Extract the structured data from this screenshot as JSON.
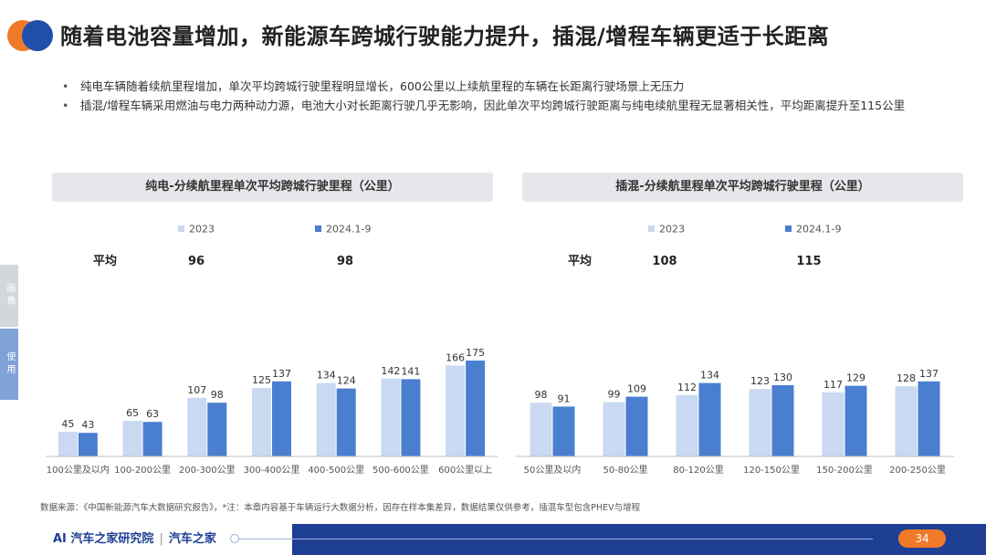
{
  "header": {
    "title": "随着电池容量增加，新能源车跨城行驶能力提升，插混/增程车辆更适于长距离"
  },
  "bullets": [
    "纯电车辆随着续航里程增加，单次平均跨城行驶里程明显增长，600公里以上续航里程的车辆在长距离行驶场景上无压力",
    "插混/增程车辆采用燃油与电力两种动力源，电池大小对长距离行驶几乎无影响，因此单次平均跨城行驶距离与纯电续航里程无显著相关性，平均距离提升至115公里"
  ],
  "side_tabs": [
    "画像",
    "使用"
  ],
  "colors": {
    "series_2023": "#c9d9f2",
    "series_2024": "#4a7fd0",
    "axis": "#bfbfbf"
  },
  "chart_data": [
    {
      "type": "bar",
      "title": "纯电-分续航里程单次平均跨城行驶里程（公里）",
      "average_label": "平均",
      "averages": [
        "96",
        "98"
      ],
      "categories": [
        "100公里及以内",
        "100-200公里",
        "200-300公里",
        "300-400公里",
        "400-500公里",
        "500-600公里",
        "600公里以上"
      ],
      "series": [
        {
          "name": "2023",
          "values": [
            45,
            65,
            107,
            125,
            134,
            142,
            166
          ]
        },
        {
          "name": "2024.1-9",
          "values": [
            43,
            63,
            98,
            137,
            124,
            141,
            175
          ]
        }
      ],
      "ylim": [
        0,
        200
      ],
      "legend": "top",
      "grid": false
    },
    {
      "type": "bar",
      "title": "插混-分续航里程单次平均跨城行驶里程（公里）",
      "average_label": "平均",
      "averages": [
        "108",
        "115"
      ],
      "categories": [
        "50公里及以内",
        "50-80公里",
        "80-120公里",
        "120-150公里",
        "150-200公里",
        "200-250公里"
      ],
      "series": [
        {
          "name": "2023",
          "values": [
            98,
            99,
            112,
            123,
            117,
            128
          ]
        },
        {
          "name": "2024.1-9",
          "values": [
            91,
            109,
            134,
            130,
            129,
            137
          ]
        }
      ],
      "ylim": [
        0,
        200
      ],
      "legend": "top",
      "grid": false
    }
  ],
  "source": "数据来源：《中国新能源汽车大数据研究报告》，*注：本章内容基于车辆运行大数据分析，因存在样本集差异，数据结果仅供参考，插混车型包含PHEV与增程",
  "footer": {
    "brand1": "AI 汽车之家研究院",
    "brand2": "汽车之家",
    "page": "34"
  }
}
